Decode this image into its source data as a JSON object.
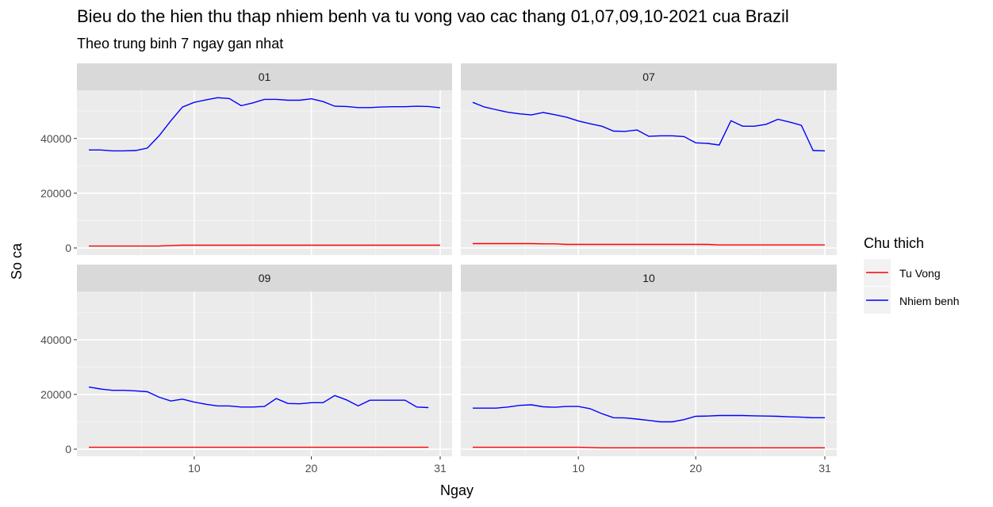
{
  "chart_data": {
    "type": "line",
    "title": "Bieu do the hien thu thap nhiem benh va tu vong vao cac thang 01,07,09,10-2021 cua Brazil",
    "subtitle": "Theo trung binh 7 ngay gan nhat",
    "xlabel": "Ngay",
    "ylabel": "So ca",
    "xlim": [
      1,
      31
    ],
    "ylim": [
      0,
      55000
    ],
    "x_ticks": [
      10,
      20,
      31
    ],
    "y_ticks": [
      0,
      20000,
      40000
    ],
    "grid": true,
    "legend": {
      "title": "Chu thich",
      "placement": "right",
      "entries": [
        {
          "label": "Tu Vong",
          "color": "#ff0000"
        },
        {
          "label": "Nhiem benh",
          "color": "#0000ff"
        }
      ]
    },
    "panels": [
      {
        "label": "01",
        "series": [
          {
            "name": "Tu Vong",
            "color": "#ff0000",
            "x": [
              1,
              2,
              3,
              4,
              5,
              6,
              7,
              8,
              9,
              10,
              11,
              12,
              13,
              14,
              15,
              16,
              17,
              18,
              19,
              20,
              21,
              22,
              23,
              24,
              25,
              26,
              27,
              28,
              29,
              30,
              31
            ],
            "y": [
              700,
              700,
              700,
              700,
              700,
              700,
              700,
              900,
              1000,
              1000,
              1000,
              1000,
              1000,
              1000,
              1000,
              1000,
              1000,
              1000,
              1000,
              1000,
              1000,
              1000,
              1000,
              1000,
              1000,
              1000,
              1000,
              1000,
              1000,
              1000,
              1000
            ]
          },
          {
            "name": "Nhiem benh",
            "color": "#0000ff",
            "x": [
              1,
              2,
              3,
              4,
              5,
              6,
              7,
              8,
              9,
              10,
              11,
              12,
              13,
              14,
              15,
              16,
              17,
              18,
              19,
              20,
              21,
              22,
              23,
              24,
              25,
              26,
              27,
              28,
              29,
              30,
              31
            ],
            "y": [
              35800,
              35800,
              35500,
              35500,
              35600,
              36500,
              41000,
              46500,
              51500,
              53200,
              54100,
              54900,
              54600,
              52000,
              53000,
              54300,
              54300,
              54000,
              54000,
              54500,
              53500,
              51800,
              51700,
              51300,
              51300,
              51500,
              51600,
              51600,
              51800,
              51700,
              51200
            ]
          }
        ]
      },
      {
        "label": "07",
        "series": [
          {
            "name": "Tu Vong",
            "color": "#ff0000",
            "x": [
              1,
              2,
              3,
              4,
              5,
              6,
              7,
              8,
              9,
              10,
              11,
              12,
              13,
              14,
              15,
              16,
              17,
              18,
              19,
              20,
              21,
              22,
              23,
              24,
              25,
              26,
              27,
              28,
              29,
              30,
              31
            ],
            "y": [
              1600,
              1600,
              1600,
              1600,
              1600,
              1600,
              1500,
              1500,
              1300,
              1300,
              1300,
              1300,
              1300,
              1300,
              1300,
              1300,
              1300,
              1300,
              1300,
              1300,
              1300,
              1100,
              1100,
              1100,
              1100,
              1100,
              1100,
              1100,
              1100,
              1100,
              1100
            ]
          },
          {
            "name": "Nhiem benh",
            "color": "#0000ff",
            "x": [
              1,
              2,
              3,
              4,
              5,
              6,
              7,
              8,
              9,
              10,
              11,
              12,
              13,
              14,
              15,
              16,
              17,
              18,
              19,
              20,
              21,
              22,
              23,
              24,
              25,
              26,
              27,
              28,
              29,
              30,
              31
            ],
            "y": [
              53200,
              51500,
              50500,
              49600,
              49000,
              48600,
              49500,
              48700,
              47800,
              46400,
              45400,
              44500,
              42700,
              42600,
              43100,
              40800,
              41000,
              41000,
              40700,
              38400,
              38200,
              37600,
              46500,
              44500,
              44500,
              45200,
              47000,
              46000,
              44800,
              35600,
              35500
            ]
          }
        ]
      },
      {
        "label": "09",
        "series": [
          {
            "name": "Tu Vong",
            "color": "#ff0000",
            "x": [
              1,
              2,
              3,
              4,
              5,
              6,
              7,
              8,
              9,
              10,
              11,
              12,
              13,
              14,
              15,
              16,
              17,
              18,
              19,
              20,
              21,
              22,
              23,
              24,
              25,
              26,
              27,
              28,
              29,
              30
            ],
            "y": [
              700,
              700,
              700,
              700,
              700,
              700,
              700,
              700,
              700,
              700,
              700,
              700,
              700,
              700,
              700,
              700,
              700,
              700,
              700,
              700,
              700,
              700,
              700,
              700,
              700,
              700,
              700,
              700,
              700,
              700
            ]
          },
          {
            "name": "Nhiem benh",
            "color": "#0000ff",
            "x": [
              1,
              2,
              3,
              4,
              5,
              6,
              7,
              8,
              9,
              10,
              11,
              12,
              13,
              14,
              15,
              16,
              17,
              18,
              19,
              20,
              21,
              22,
              23,
              24,
              25,
              26,
              27,
              28,
              29,
              30
            ],
            "y": [
              22700,
              22000,
              21500,
              21500,
              21300,
              21000,
              19000,
              17600,
              18300,
              17200,
              16400,
              15800,
              15800,
              15400,
              15400,
              15600,
              18500,
              16700,
              16600,
              17000,
              17000,
              19600,
              18000,
              15800,
              17900,
              17900,
              17900,
              17900,
              15400,
              15200
            ]
          }
        ]
      },
      {
        "label": "10",
        "series": [
          {
            "name": "Tu Vong",
            "color": "#ff0000",
            "x": [
              1,
              2,
              3,
              4,
              5,
              6,
              7,
              8,
              9,
              10,
              11,
              12,
              13,
              14,
              15,
              16,
              17,
              18,
              19,
              20,
              21,
              22,
              23,
              24,
              25,
              26,
              27,
              28,
              29,
              30,
              31
            ],
            "y": [
              700,
              700,
              700,
              700,
              700,
              700,
              700,
              700,
              700,
              700,
              600,
              500,
              500,
              500,
              500,
              500,
              500,
              500,
              500,
              500,
              500,
              500,
              500,
              500,
              500,
              500,
              500,
              500,
              500,
              500,
              500
            ]
          },
          {
            "name": "Nhiem benh",
            "color": "#0000ff",
            "x": [
              1,
              2,
              3,
              4,
              5,
              6,
              7,
              8,
              9,
              10,
              11,
              12,
              13,
              14,
              15,
              16,
              17,
              18,
              19,
              20,
              21,
              22,
              23,
              24,
              25,
              26,
              27,
              28,
              29,
              30,
              31
            ],
            "y": [
              15000,
              15000,
              15000,
              15400,
              16000,
              16200,
              15500,
              15300,
              15600,
              15600,
              14800,
              13000,
              11500,
              11400,
              11000,
              10500,
              10000,
              10000,
              10800,
              12000,
              12100,
              12300,
              12300,
              12300,
              12200,
              12100,
              12000,
              11800,
              11700,
              11500,
              11500
            ]
          }
        ]
      }
    ]
  }
}
